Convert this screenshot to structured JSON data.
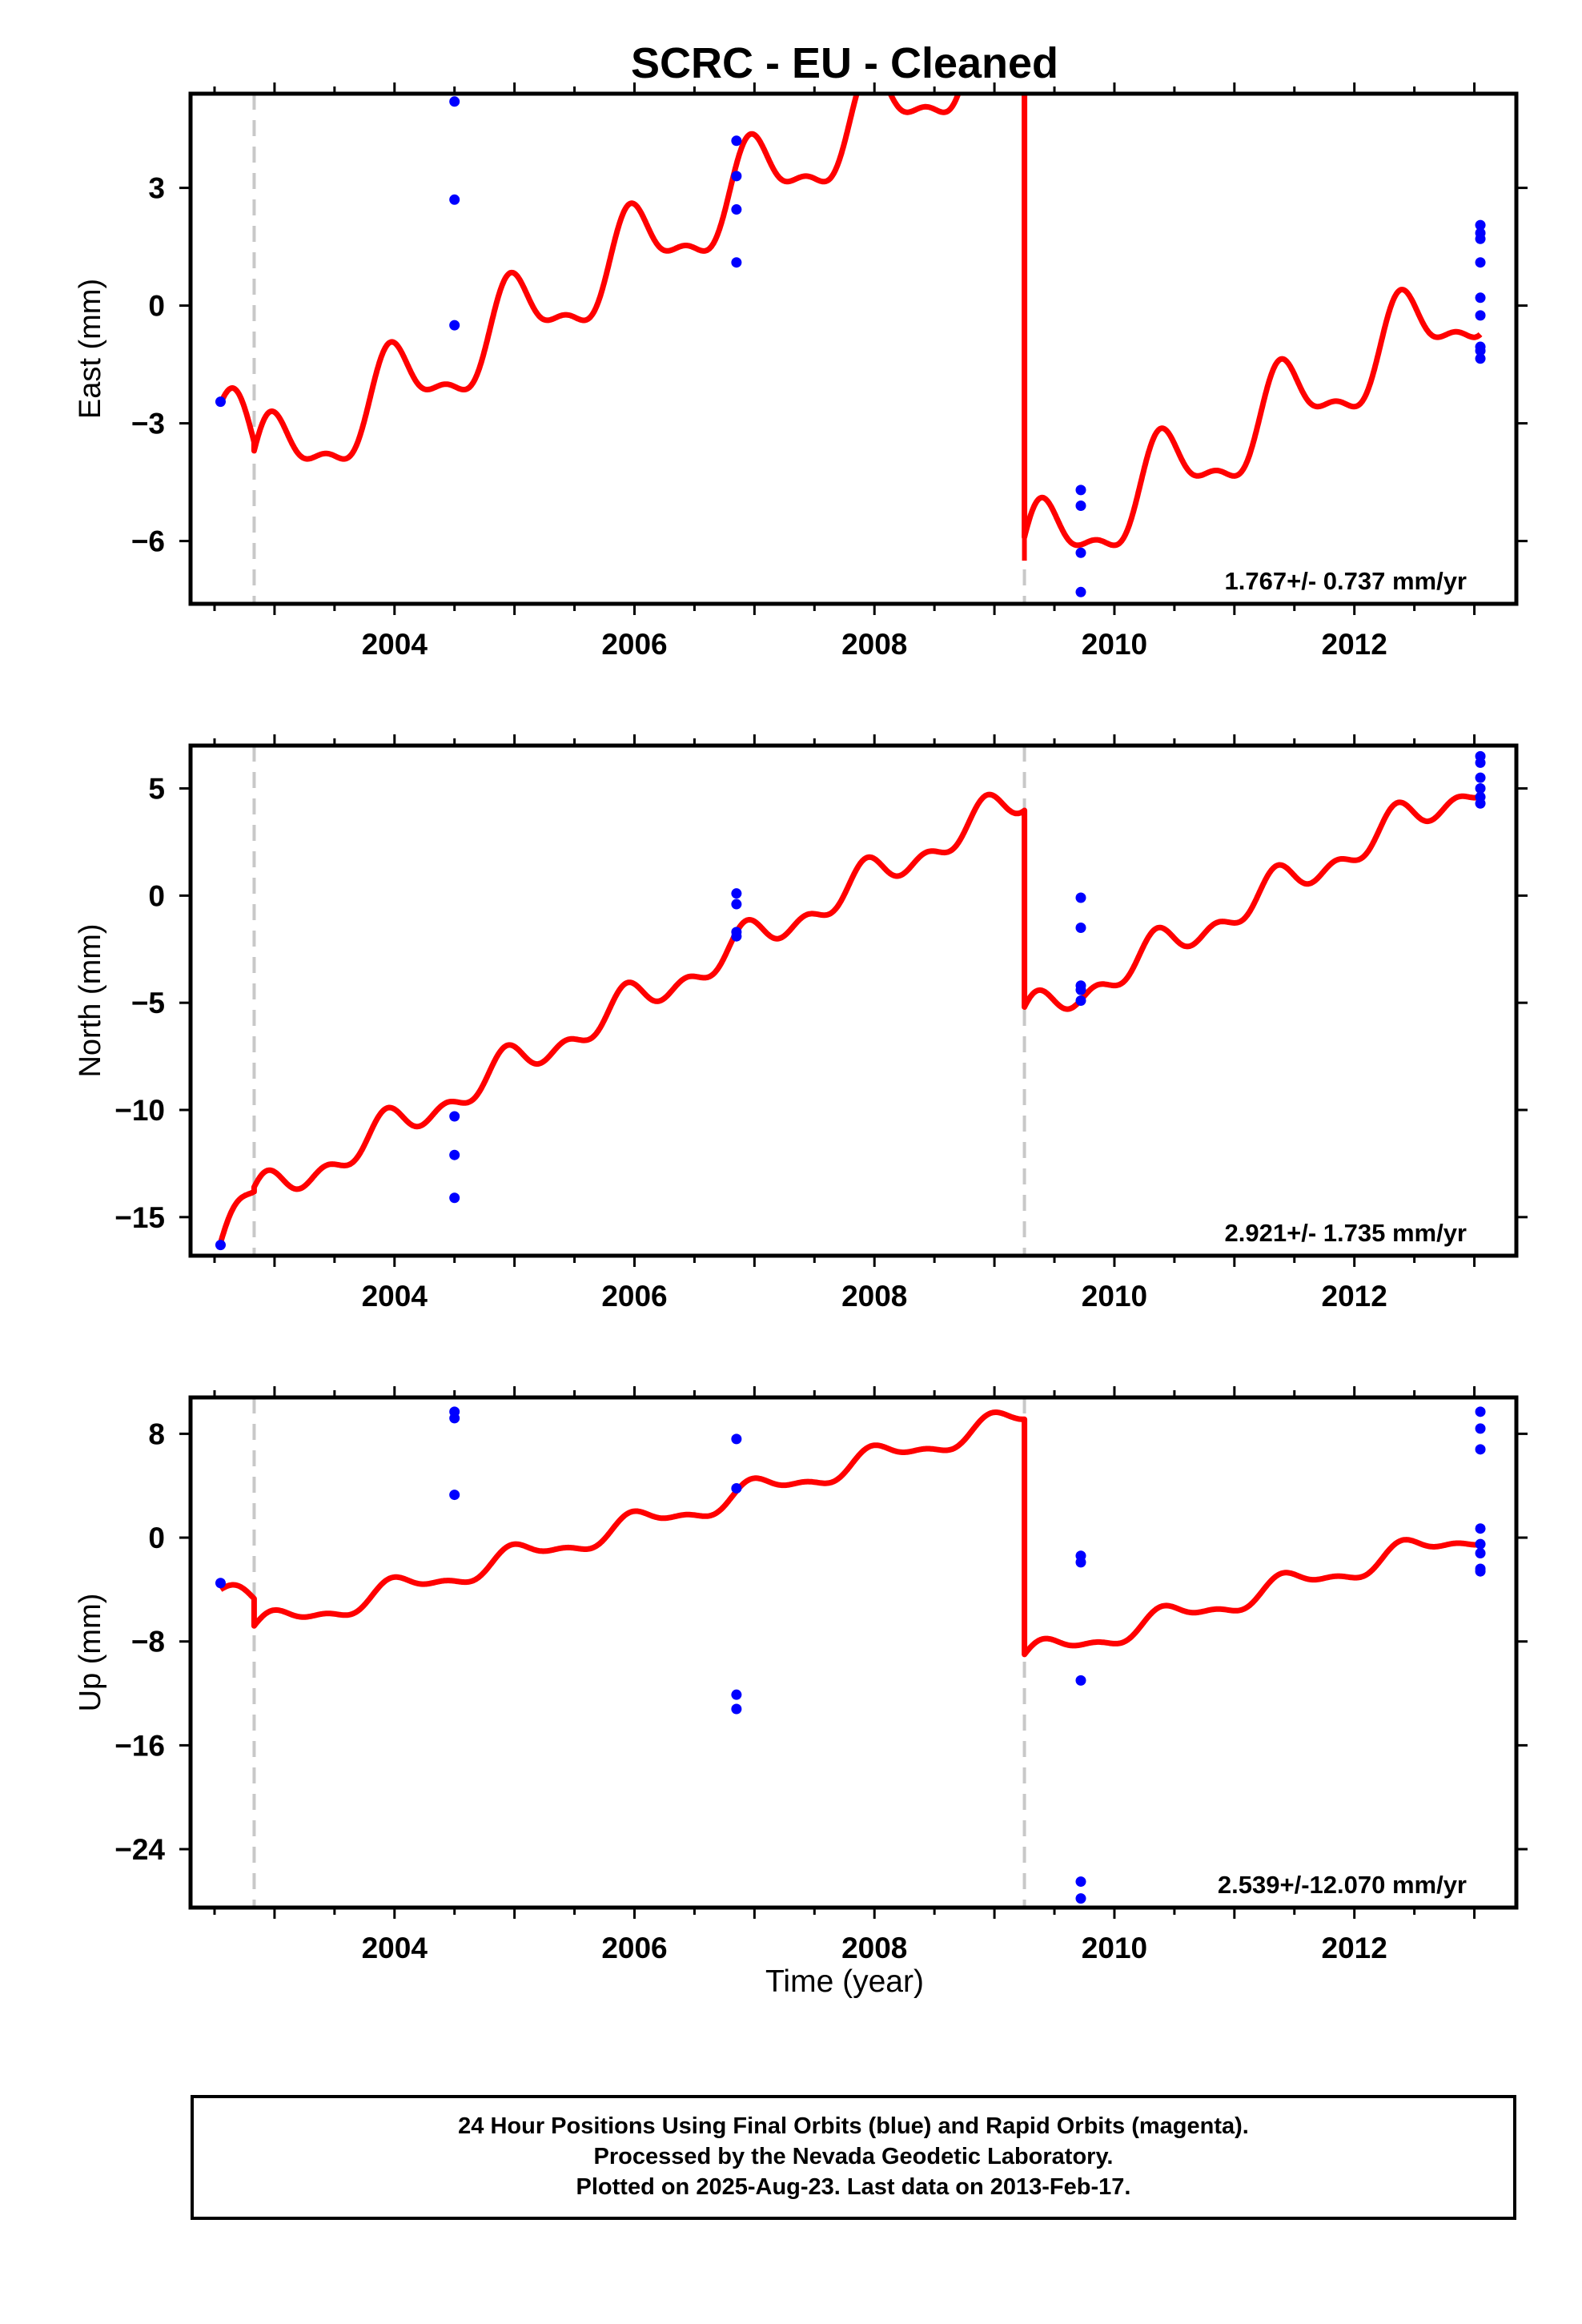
{
  "figure": {
    "title": "SCRC  - EU - Cleaned",
    "xlabel": "Time (year)",
    "footer": [
      "24 Hour Positions Using Final Orbits (blue) and Rapid Orbits (magenta).",
      "Processed by the Nevada Geodetic Laboratory.",
      "Plotted on 2025-Aug-23. Last data on 2013-Feb-17."
    ]
  },
  "colors": {
    "model": "#ff0000",
    "final_orbits": "#0000ff",
    "rapid_orbits": "#ff00ff",
    "offsets": "#c8c8c8",
    "frame": "#000000"
  },
  "chart_data": [
    {
      "type": "scatter",
      "panel": "east",
      "ylabel": "East (mm)",
      "xlim": [
        2002.3,
        2013.35
      ],
      "ylim": [
        -7.6,
        5.4
      ],
      "xticks": [
        2004,
        2006,
        2008,
        2010,
        2012
      ],
      "yticks": [
        3,
        0,
        -3,
        -6
      ],
      "rate_label": "1.767+/- 0.737 mm/yr",
      "offset_lines": [
        2002.83,
        2009.25
      ],
      "points": [
        [
          2002.55,
          -2.45
        ],
        [
          2004.5,
          5.2
        ],
        [
          2004.5,
          2.7
        ],
        [
          2004.5,
          -0.5
        ],
        [
          2006.85,
          4.2
        ],
        [
          2006.85,
          3.3
        ],
        [
          2006.85,
          2.45
        ],
        [
          2006.85,
          1.1
        ],
        [
          2009.72,
          -4.7
        ],
        [
          2009.72,
          -5.1
        ],
        [
          2009.72,
          -6.3
        ],
        [
          2009.72,
          -7.3
        ],
        [
          2013.05,
          2.05
        ],
        [
          2013.05,
          1.85
        ],
        [
          2013.05,
          1.7
        ],
        [
          2013.05,
          1.1
        ],
        [
          2013.05,
          0.2
        ],
        [
          2013.05,
          -0.25
        ],
        [
          2013.05,
          -1.05
        ],
        [
          2013.05,
          -1.15
        ],
        [
          2013.05,
          -1.35
        ]
      ],
      "model": {
        "segments": [
          {
            "x0": 2002.55,
            "x1": 2002.83,
            "a": -2.5,
            "r": -3.2
          },
          {
            "x0": 2002.83,
            "x1": 2009.25,
            "a": -3.7,
            "r": 1.767
          },
          {
            "x0": 2009.25,
            "x1": 2013.05,
            "a": -5.9,
            "r": 1.767
          }
        ],
        "annual_amp": 1.0,
        "annual_phase": 0.55,
        "semiannual_amp": 0.4,
        "semiannual_phase": 0.2,
        "spike": {
          "x": 2009.25,
          "from": 5.4,
          "to": -6.5
        }
      }
    },
    {
      "type": "scatter",
      "panel": "north",
      "ylabel": "North (mm)",
      "xlim": [
        2002.3,
        2013.35
      ],
      "ylim": [
        -16.8,
        7
      ],
      "xticks": [
        2004,
        2006,
        2008,
        2010,
        2012
      ],
      "yticks": [
        5,
        0,
        -5,
        -10,
        -15
      ],
      "rate_label": "2.921+/- 1.735 mm/yr",
      "offset_lines": [
        2002.83,
        2009.25
      ],
      "points": [
        [
          2002.55,
          -16.3
        ],
        [
          2004.5,
          -10.3
        ],
        [
          2004.5,
          -12.1
        ],
        [
          2004.5,
          -14.1
        ],
        [
          2006.85,
          0.1
        ],
        [
          2006.85,
          -0.4
        ],
        [
          2006.85,
          -1.7
        ],
        [
          2006.85,
          -1.9
        ],
        [
          2009.72,
          -0.1
        ],
        [
          2009.72,
          -1.5
        ],
        [
          2009.72,
          -4.2
        ],
        [
          2009.72,
          -4.4
        ],
        [
          2009.72,
          -4.9
        ],
        [
          2013.05,
          6.5
        ],
        [
          2013.05,
          6.2
        ],
        [
          2013.05,
          5.5
        ],
        [
          2013.05,
          5.0
        ],
        [
          2013.05,
          4.6
        ],
        [
          2013.05,
          4.3
        ]
      ],
      "model": {
        "segments": [
          {
            "x0": 2002.55,
            "x1": 2002.83,
            "a": -16.2,
            "r": 11.0
          },
          {
            "x0": 2002.83,
            "x1": 2009.25,
            "a": -13.6,
            "r": 2.921
          },
          {
            "x0": 2009.25,
            "x1": 2013.05,
            "a": -5.2,
            "r": 2.921
          }
        ],
        "annual_amp": 0.6,
        "annual_phase": 0.9,
        "semiannual_amp": 0.5,
        "semiannual_phase": 0.35,
        "spike": null
      }
    },
    {
      "type": "scatter",
      "panel": "up",
      "ylabel": "Up (mm)",
      "xlim": [
        2002.3,
        2013.35
      ],
      "ylim": [
        -28.5,
        10.8
      ],
      "xticks": [
        2004,
        2006,
        2008,
        2010,
        2012
      ],
      "yticks": [
        8,
        0,
        -8,
        -16,
        -24
      ],
      "rate_label": "2.539+/-12.070 mm/yr",
      "offset_lines": [
        2002.83,
        2009.25
      ],
      "points": [
        [
          2002.55,
          -3.5
        ],
        [
          2004.5,
          9.7
        ],
        [
          2004.5,
          9.2
        ],
        [
          2004.5,
          3.3
        ],
        [
          2006.85,
          7.6
        ],
        [
          2006.85,
          3.8
        ],
        [
          2006.85,
          -12.1
        ],
        [
          2006.85,
          -13.2
        ],
        [
          2009.72,
          -1.4
        ],
        [
          2009.72,
          -1.9
        ],
        [
          2009.72,
          -11.0
        ],
        [
          2009.72,
          -26.5
        ],
        [
          2009.72,
          -27.8
        ],
        [
          2013.05,
          9.7
        ],
        [
          2013.05,
          8.4
        ],
        [
          2013.05,
          6.8
        ],
        [
          2013.05,
          0.7
        ],
        [
          2013.05,
          -0.5
        ],
        [
          2013.05,
          -1.2
        ],
        [
          2013.05,
          -2.4
        ],
        [
          2013.05,
          -2.6
        ]
      ],
      "model": {
        "segments": [
          {
            "x0": 2002.55,
            "x1": 2002.83,
            "a": -4.0,
            "r": -3.5
          },
          {
            "x0": 2002.83,
            "x1": 2009.25,
            "a": -6.8,
            "r": 2.539
          },
          {
            "x0": 2009.25,
            "x1": 2013.05,
            "a": -9.0,
            "r": 2.539
          }
        ],
        "annual_amp": 0.8,
        "annual_phase": 0.3,
        "semiannual_amp": 0.35,
        "semiannual_phase": 0.1,
        "spike": null
      }
    }
  ]
}
